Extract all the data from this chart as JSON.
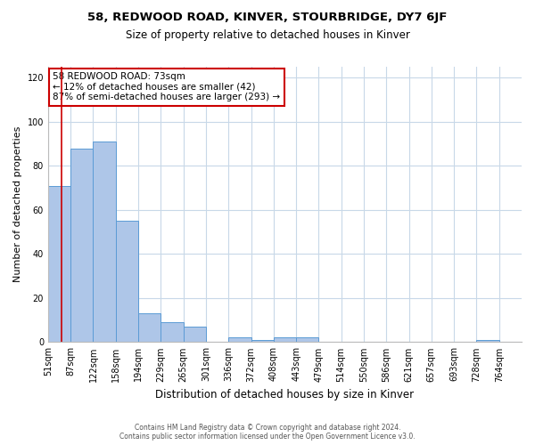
{
  "title": "58, REDWOOD ROAD, KINVER, STOURBRIDGE, DY7 6JF",
  "subtitle": "Size of property relative to detached houses in Kinver",
  "xlabel": "Distribution of detached houses by size in Kinver",
  "ylabel": "Number of detached properties",
  "bin_labels": [
    "51sqm",
    "87sqm",
    "122sqm",
    "158sqm",
    "194sqm",
    "229sqm",
    "265sqm",
    "301sqm",
    "336sqm",
    "372sqm",
    "408sqm",
    "443sqm",
    "479sqm",
    "514sqm",
    "550sqm",
    "586sqm",
    "621sqm",
    "657sqm",
    "693sqm",
    "728sqm",
    "764sqm"
  ],
  "bar_values": [
    71,
    88,
    91,
    55,
    13,
    9,
    7,
    0,
    2,
    1,
    2,
    2,
    0,
    0,
    0,
    0,
    0,
    0,
    0,
    1,
    0
  ],
  "bar_color": "#aec6e8",
  "bar_edge_color": "#5b9bd5",
  "ylim": [
    0,
    125
  ],
  "yticks": [
    0,
    20,
    40,
    60,
    80,
    100,
    120
  ],
  "annotation_title": "58 REDWOOD ROAD: 73sqm",
  "annotation_line1": "← 12% of detached houses are smaller (42)",
  "annotation_line2": "87% of semi-detached houses are larger (293) →",
  "annotation_box_color": "#ffffff",
  "annotation_box_edge_color": "#cc0000",
  "footer1": "Contains HM Land Registry data © Crown copyright and database right 2024.",
  "footer2": "Contains public sector information licensed under the Open Government Licence v3.0.",
  "bg_color": "#ffffff",
  "grid_color": "#c8d8e8",
  "title_fontsize": 9.5,
  "subtitle_fontsize": 8.5,
  "xlabel_fontsize": 8.5,
  "ylabel_fontsize": 8,
  "tick_fontsize": 7,
  "annotation_fontsize": 7.5,
  "footer_fontsize": 5.5
}
